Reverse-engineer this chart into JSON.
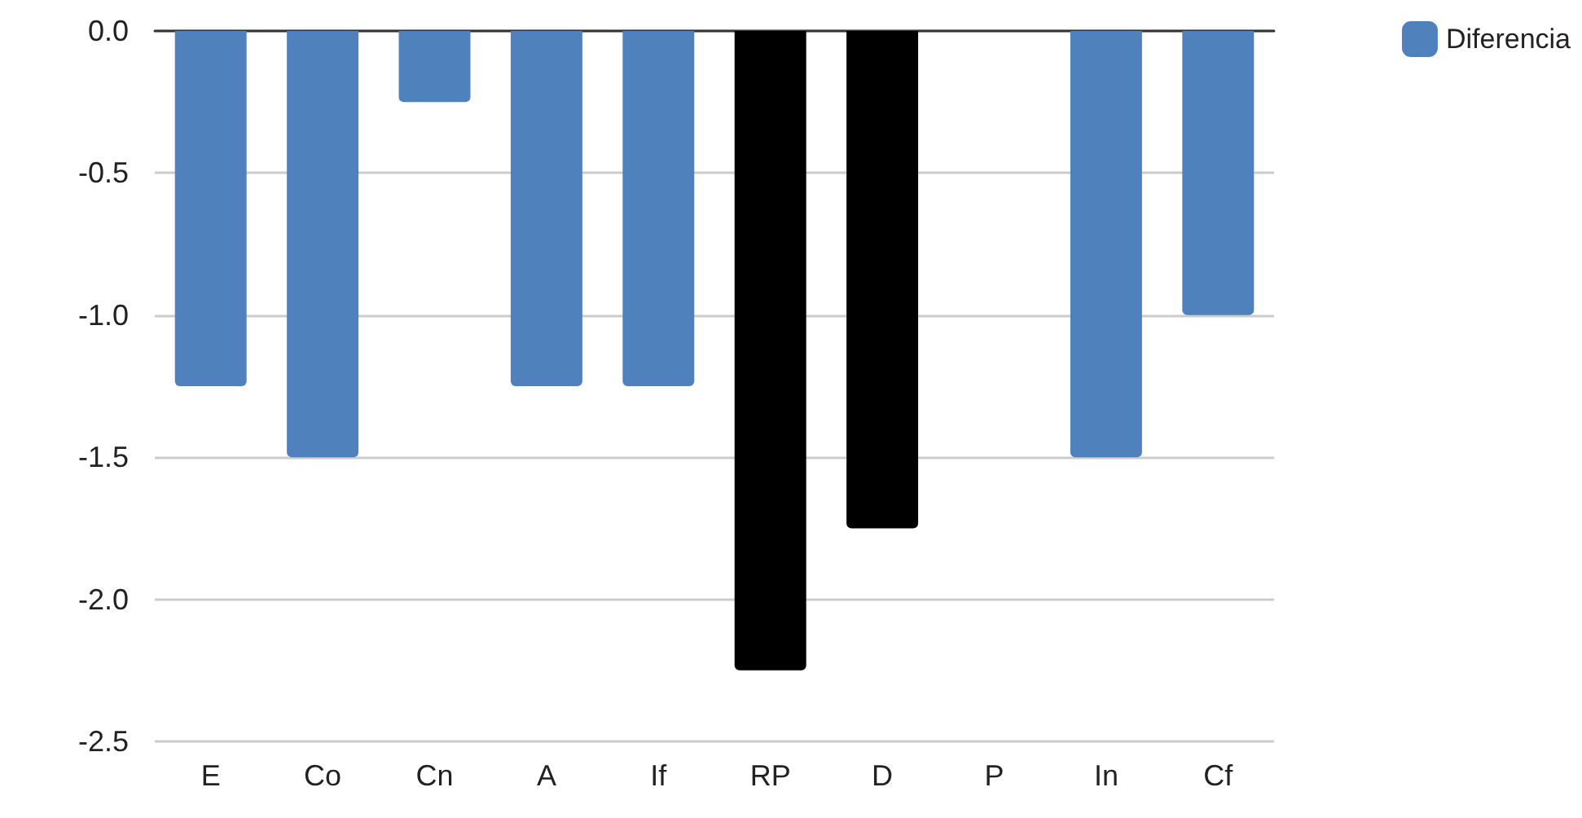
{
  "chart_data": {
    "type": "bar",
    "categories": [
      "E",
      "Co",
      "Cn",
      "A",
      "If",
      "RP",
      "D",
      "P",
      "In",
      "Cf"
    ],
    "series": [
      {
        "name": "Diferencia",
        "color": "#4f81bd",
        "values": [
          -1.25,
          -1.5,
          -0.25,
          -1.25,
          -1.25,
          -2.25,
          -1.75,
          0,
          -1.5,
          -1.0
        ],
        "colors": [
          "#4f81bd",
          "#4f81bd",
          "#4f81bd",
          "#4f81bd",
          "#4f81bd",
          "#000000",
          "#000000",
          "#4f81bd",
          "#4f81bd",
          "#4f81bd"
        ]
      }
    ],
    "ylim": [
      -2.5,
      0
    ],
    "yticks": [
      -2.5,
      {
        "value": -2,
        "label": "-2.0"
      },
      -1.5,
      {
        "value": -1,
        "label": "-1.0"
      },
      -0.5,
      {
        "value": 0,
        "label": "0.0"
      }
    ],
    "grid": "y",
    "legend": "top right"
  }
}
